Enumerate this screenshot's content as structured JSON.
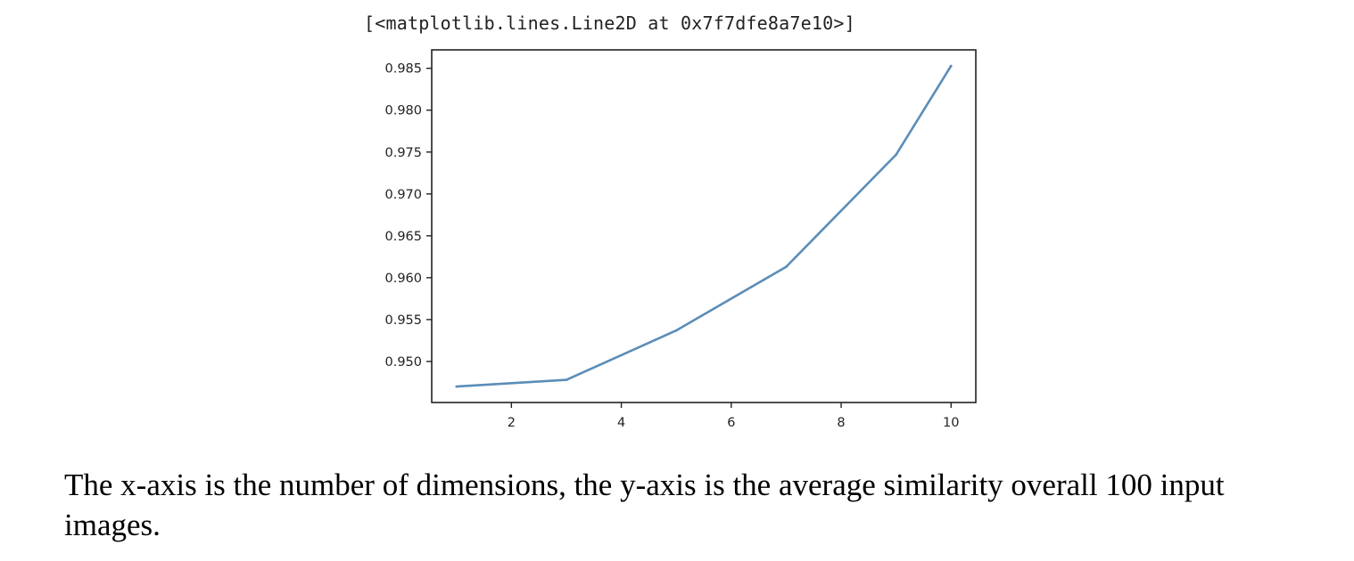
{
  "cell_output": "[<matplotlib.lines.Line2D at 0x7f7dfe8a7e10>]",
  "caption": "The x-axis is the number of dimensions, the y-axis is the average similarity overall 100 input images.",
  "chart_data": {
    "type": "line",
    "title": "",
    "xlabel": "",
    "ylabel": "",
    "x": [
      1,
      3,
      5,
      7,
      9,
      10
    ],
    "series": [
      {
        "values": [
          0.947,
          0.9478,
          0.9537,
          0.9613,
          0.9747,
          0.9853
        ],
        "color": "#5b8db8"
      }
    ],
    "xticks": [
      2,
      4,
      6,
      8,
      10
    ],
    "xtick_labels": [
      "2",
      "4",
      "6",
      "8",
      "10"
    ],
    "yticks": [
      0.95,
      0.955,
      0.96,
      0.965,
      0.97,
      0.975,
      0.98,
      0.985
    ],
    "ytick_labels": [
      "0.950",
      "0.955",
      "0.960",
      "0.965",
      "0.970",
      "0.975",
      "0.980",
      "0.985"
    ],
    "xlim": [
      0.55,
      10.45
    ],
    "ylim": [
      0.9451,
      0.9872
    ],
    "grid": false,
    "legend": "none"
  }
}
